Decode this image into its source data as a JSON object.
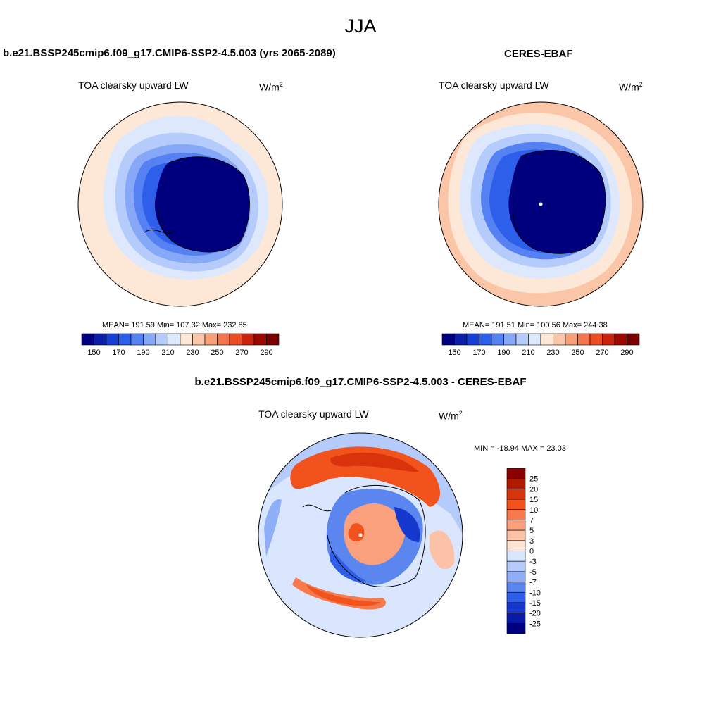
{
  "main_title": "JJA",
  "panels": {
    "model": {
      "title": "b.e21.BSSP245cmip6.f09_g17.CMIP6-SSP2-4.5.003 (yrs 2065-2089)",
      "variable": "TOA clearsky upward LW",
      "units_base": "W/m",
      "units_exp": "2",
      "stats": "MEAN= 191.59  Min= 107.32  Max= 232.85"
    },
    "obs": {
      "title": "CERES-EBAF",
      "variable": "TOA clearsky upward LW",
      "units_base": "W/m",
      "units_exp": "2",
      "stats": "MEAN= 191.51  Min= 100.56  Max= 244.38"
    },
    "diff": {
      "title": "b.e21.BSSP245cmip6.f09_g17.CMIP6-SSP2-4.5.003 - CERES-EBAF",
      "variable": "TOA clearsky upward LW",
      "units_base": "W/m",
      "units_exp": "2",
      "stats": "MIN = -18.94 MAX =  23.03"
    }
  },
  "colorbars": {
    "main": {
      "colors": [
        "#00007f",
        "#0a1ea8",
        "#1441d2",
        "#2d5fea",
        "#5581f3",
        "#86a8f7",
        "#b5cbfb",
        "#dde8fd",
        "#fde8d8",
        "#fbc6a8",
        "#f8a079",
        "#f4754c",
        "#ea4d24",
        "#c9220d",
        "#9b0a00",
        "#7a0000"
      ],
      "labels": [
        "150",
        "170",
        "190",
        "210",
        "230",
        "250",
        "270",
        "290"
      ]
    },
    "diff": {
      "colors_top_to_bottom": [
        "#8b0000",
        "#b01a00",
        "#d8330a",
        "#f2521c",
        "#f77a4c",
        "#fba07d",
        "#fcc2a8",
        "#fde3d4",
        "#d9e6fd",
        "#b5cbfb",
        "#8eaef7",
        "#5b86f0",
        "#2f5ee8",
        "#1437cd",
        "#0a1aa6",
        "#00007f"
      ],
      "labels": [
        "25",
        "20",
        "15",
        "10",
        "7",
        "5",
        "3",
        "0",
        "-3",
        "-5",
        "-7",
        "-10",
        "-15",
        "-20",
        "-25"
      ]
    }
  }
}
